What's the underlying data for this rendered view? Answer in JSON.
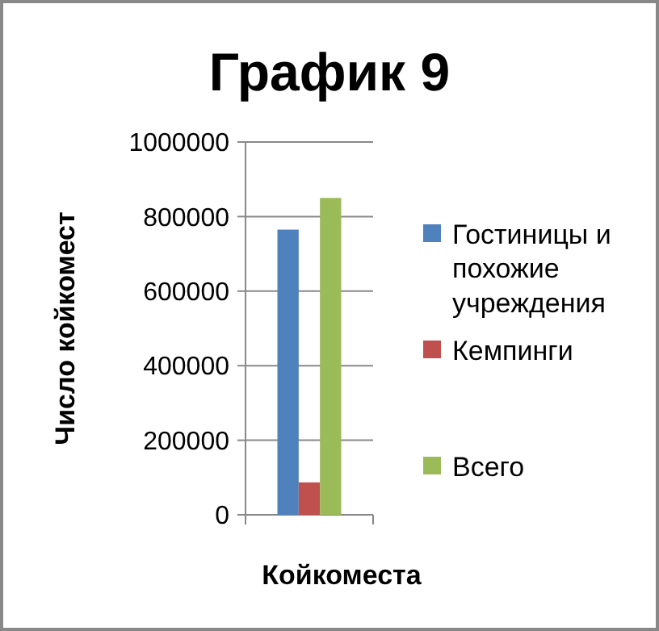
{
  "chart_data": {
    "type": "bar",
    "title": "График 9",
    "xlabel": "Койкоместа",
    "ylabel": "Число койкомест",
    "categories": [
      null
    ],
    "series": [
      {
        "name": "Гостиницы и похожие учреждения",
        "color": "#4f81bd",
        "values": [
          765000
        ]
      },
      {
        "name": "Кемпинги",
        "color": "#c0504d",
        "values": [
          87000
        ]
      },
      {
        "name": "Всего",
        "color": "#9bbb59",
        "values": [
          850000
        ]
      }
    ],
    "ylim": [
      0,
      1000000
    ],
    "yticks": [
      0,
      200000,
      400000,
      600000,
      800000,
      1000000
    ],
    "grid": "y",
    "legend": "right"
  }
}
